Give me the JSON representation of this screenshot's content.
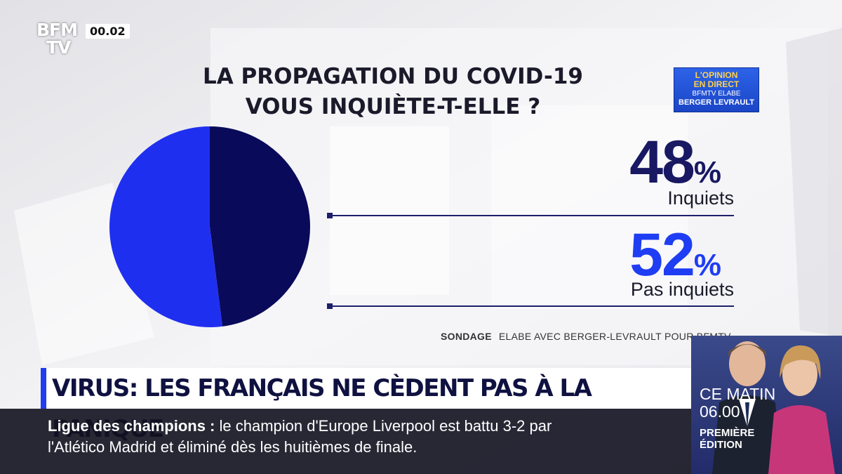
{
  "channel": {
    "logo_line1": "BFM",
    "logo_line2": "TV",
    "clock": "00.02"
  },
  "badge": {
    "line1": "L'OPINION",
    "line2": "EN DIRECT",
    "line3": "BFMTV ELABE",
    "line4": "BERGER LEVRAULT"
  },
  "chart_data": {
    "type": "pie",
    "title": "LA PROPAGATION DU COVID-19 VOUS INQUIÈTE-T-ELLE ?",
    "title_line1": "LA PROPAGATION DU COVID-19",
    "title_line2": "VOUS INQUIÈTE-T-ELLE ?",
    "slices": [
      {
        "label": "Inquiets",
        "value": 48,
        "display": "48",
        "unit": "%",
        "color": "#0a0a5a"
      },
      {
        "label": "Pas inquiets",
        "value": 52,
        "display": "52",
        "unit": "%",
        "color": "#1f2ff0"
      }
    ],
    "source_label": "SONDAGE",
    "source_text": "ELABE AVEC BERGER-LEVRAULT POUR BFMTV"
  },
  "presenters": {
    "line1": "CE MATIN",
    "line2": "06.00",
    "line3": "PREMIÈRE ÉDITION"
  },
  "headline": "VIRUS: LES FRANÇAIS NE CÈDENT PAS À LA PANIQUE",
  "ticker": {
    "lead": "Ligue des champions :",
    "line1_rest": "le champion d'Europe Liverpool est battu 3-2 par",
    "line2": "l'Atlético Madrid et éliminé dès les huitièmes de finale."
  }
}
